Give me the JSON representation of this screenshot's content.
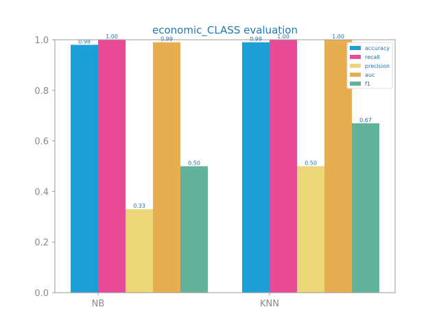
{
  "chart_data": {
    "type": "bar",
    "title": "economic_CLASS evaluation",
    "xlabel": "",
    "ylabel": "",
    "categories": [
      "NB",
      "KNN"
    ],
    "ylim": [
      0,
      1.0
    ],
    "yticks": [
      "0.0",
      "0.2",
      "0.4",
      "0.6",
      "0.8",
      "1.0"
    ],
    "grid": false,
    "legend_position": "top-right",
    "series": [
      {
        "name": "accuracy",
        "color": "#1b9fd6",
        "values": [
          0.98,
          0.99
        ],
        "labels": [
          "0.98",
          "0.99"
        ]
      },
      {
        "name": "recall",
        "color": "#e84a96",
        "values": [
          1.0,
          1.0
        ],
        "labels": [
          "1.00",
          "1.00"
        ]
      },
      {
        "name": "precision",
        "color": "#ecd677",
        "values": [
          0.33,
          0.5
        ],
        "labels": [
          "0.33",
          "0.50"
        ]
      },
      {
        "name": "auc",
        "color": "#e8ad4e",
        "values": [
          0.99,
          1.0
        ],
        "labels": [
          "0.99",
          "1.00"
        ]
      },
      {
        "name": "f1",
        "color": "#63b39c",
        "values": [
          0.5,
          0.67
        ],
        "labels": [
          "0.50",
          "0.67"
        ]
      }
    ]
  }
}
